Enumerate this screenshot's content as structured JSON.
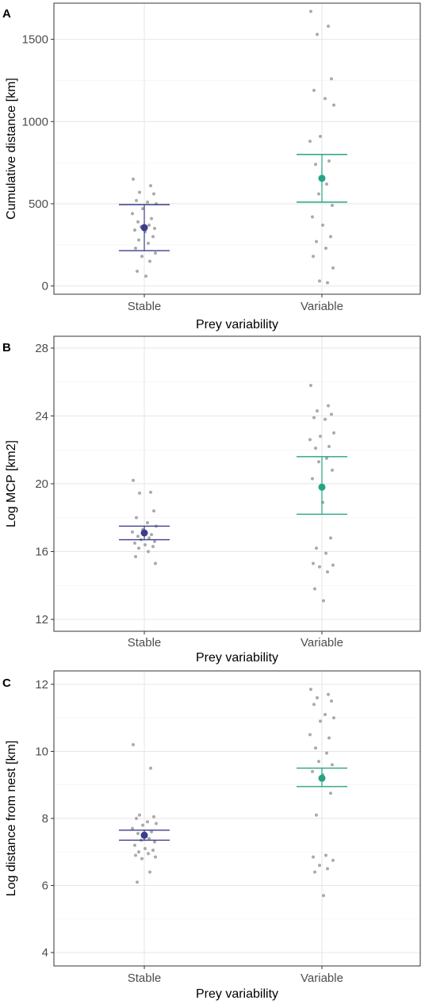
{
  "chart_data": [
    {
      "panel": "A",
      "type": "scatter",
      "xlabel": "Prey variability",
      "ylabel": "Cumulative distance [km]",
      "categories": [
        "Stable",
        "Variable"
      ],
      "ylim": [
        -50,
        1720
      ],
      "yticks": [
        0,
        500,
        1000,
        1500
      ],
      "points": [
        [
          650,
          610,
          570,
          560,
          520,
          510,
          500,
          470,
          440,
          410,
          390,
          370,
          360,
          350,
          340,
          330,
          300,
          280,
          260,
          230,
          200,
          180,
          150,
          90,
          60
        ],
        [
          1670,
          1580,
          1530,
          1260,
          1190,
          1140,
          1100,
          910,
          880,
          760,
          740,
          620,
          560,
          490,
          420,
          370,
          300,
          270,
          230,
          180,
          110,
          30,
          20
        ]
      ],
      "means": [
        355,
        655
      ],
      "ci_lower": [
        215,
        510
      ],
      "ci_upper": [
        495,
        800
      ],
      "colors": [
        "#3c3c8c",
        "#26a385"
      ]
    },
    {
      "panel": "B",
      "type": "scatter",
      "xlabel": "Prey variability",
      "ylabel": "Log MCP [km2]",
      "categories": [
        "Stable",
        "Variable"
      ],
      "ylim": [
        11.3,
        28.7
      ],
      "yticks": [
        12,
        16,
        20,
        24,
        28
      ],
      "points": [
        [
          20.2,
          19.5,
          19.45,
          18.4,
          18.0,
          17.7,
          17.5,
          17.3,
          17.15,
          17.0,
          16.9,
          16.8,
          16.7,
          16.6,
          16.5,
          16.4,
          16.3,
          16.2,
          16.0,
          15.7,
          15.3
        ],
        [
          25.8,
          24.6,
          24.3,
          24.1,
          23.9,
          23.8,
          23.0,
          22.8,
          22.6,
          22.2,
          22.1,
          21.5,
          21.3,
          20.8,
          20.3,
          18.9,
          16.8,
          16.2,
          15.9,
          15.3,
          15.2,
          15.1,
          14.8,
          13.8,
          13.1
        ]
      ],
      "means": [
        17.1,
        19.8
      ],
      "ci_lower": [
        16.7,
        18.2
      ],
      "ci_upper": [
        17.5,
        21.6
      ],
      "colors": [
        "#3c3c8c",
        "#26a385"
      ]
    },
    {
      "panel": "C",
      "type": "scatter",
      "xlabel": "Prey variability",
      "ylabel": "Log distance from nest [km]",
      "categories": [
        "Stable",
        "Variable"
      ],
      "ylim": [
        3.6,
        12.4
      ],
      "yticks": [
        4,
        6,
        8,
        10,
        12
      ],
      "points": [
        [
          10.2,
          9.5,
          8.1,
          8.05,
          8.0,
          7.9,
          7.85,
          7.8,
          7.7,
          7.6,
          7.55,
          7.4,
          7.35,
          7.3,
          7.2,
          7.1,
          7.05,
          7.0,
          6.95,
          6.9,
          6.85,
          6.8,
          6.4,
          6.1
        ],
        [
          11.85,
          11.7,
          11.6,
          11.5,
          11.4,
          11.1,
          11.0,
          10.9,
          10.5,
          10.4,
          10.1,
          9.95,
          9.7,
          9.6,
          9.4,
          9.3,
          8.75,
          8.1,
          6.9,
          6.85,
          6.75,
          6.6,
          6.5,
          6.4,
          5.7
        ]
      ],
      "means": [
        7.5,
        9.2
      ],
      "ci_lower": [
        7.35,
        8.95
      ],
      "ci_upper": [
        7.65,
        9.5
      ],
      "colors": [
        "#3c3c8c",
        "#26a385"
      ]
    }
  ]
}
